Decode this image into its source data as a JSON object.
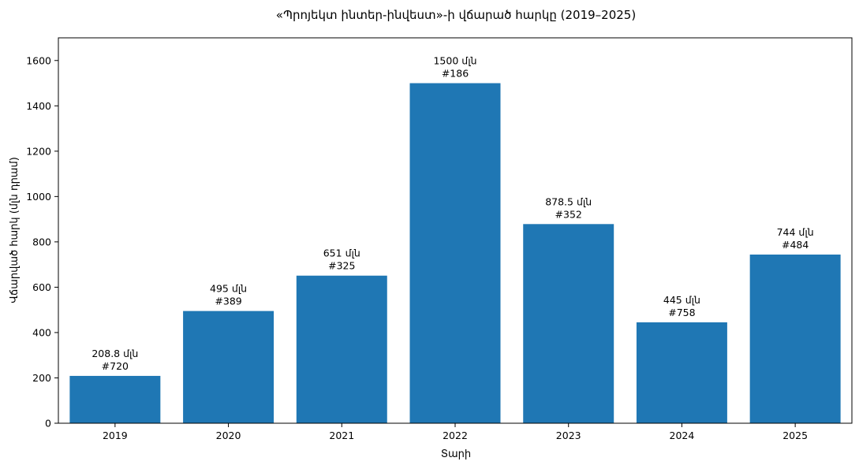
{
  "chart_data": {
    "type": "bar",
    "title": "«Պրոյեկտ ինտեր-ինվեստ»-ի վճարած հարկը (2019–2025)",
    "xlabel": "Տարի",
    "ylabel": "Վճարված հարկ (մլն դրամ)",
    "categories": [
      "2019",
      "2020",
      "2021",
      "2022",
      "2023",
      "2024",
      "2025"
    ],
    "values": [
      208.8,
      495,
      651,
      1500,
      878.5,
      445,
      744
    ],
    "bar_labels": [
      "208.8 մլն",
      "495 մլն",
      "651 մլն",
      "1500 մլն",
      "878.5 մլն",
      "445 մլն",
      "744 մլն"
    ],
    "ranks": [
      "#720",
      "#389",
      "#325",
      "#186",
      "#352",
      "#758",
      "#484"
    ],
    "ylim": [
      0,
      1700
    ],
    "yticks": [
      "0",
      "200",
      "400",
      "600",
      "800",
      "1000",
      "1200",
      "1400",
      "1600"
    ],
    "grid": false,
    "bar_color": "#1f77b4"
  }
}
